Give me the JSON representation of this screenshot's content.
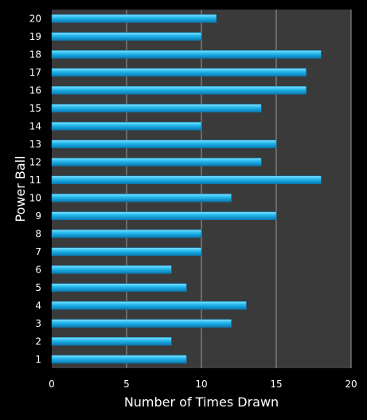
{
  "chart_data": {
    "type": "bar",
    "orientation": "horizontal",
    "categories": [
      "1",
      "2",
      "3",
      "4",
      "5",
      "6",
      "7",
      "8",
      "9",
      "10",
      "11",
      "12",
      "13",
      "14",
      "15",
      "16",
      "17",
      "18",
      "19",
      "20"
    ],
    "values": [
      9,
      8,
      12,
      13,
      9,
      8,
      10,
      10,
      15,
      12,
      18,
      14,
      15,
      10,
      14,
      17,
      17,
      18,
      10,
      11
    ],
    "xlabel": "Number of Times Drawn",
    "ylabel": "Power Ball",
    "xlim": [
      0,
      20
    ],
    "xticks": [
      "0",
      "5",
      "10",
      "15",
      "20"
    ],
    "grid": "vertical",
    "legend": "none",
    "colors": {
      "background": "#000000",
      "plot_area": "#3a3a3a",
      "gridline": "#9a9a9a",
      "bar_top": "#7fe3ff",
      "bar_mid": "#1fb4ea",
      "bar_bottom": "#0a78b0",
      "text": "#ffffff"
    }
  }
}
